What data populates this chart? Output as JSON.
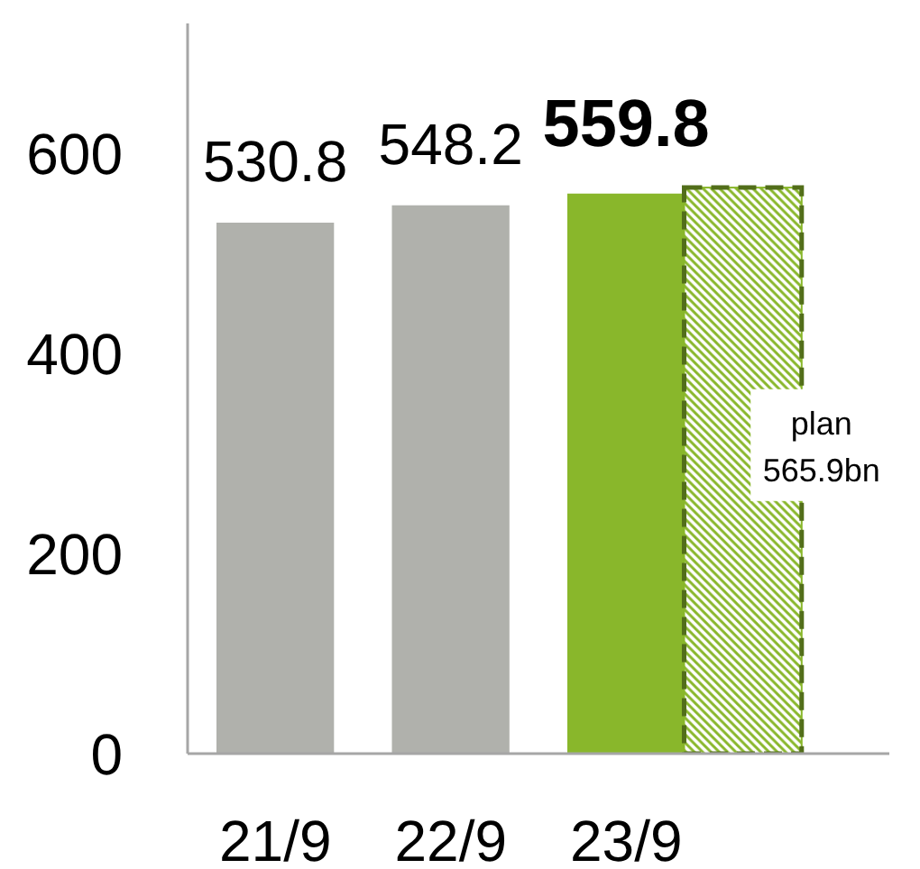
{
  "chart_data": {
    "type": "bar",
    "categories": [
      "21/9",
      "22/9",
      "23/9",
      null
    ],
    "series": [
      {
        "colors": [
          "#b0b1ac",
          "#b0b1ac",
          "#89b72b",
          null
        ],
        "values": [
          530.8,
          548.2,
          559.8,
          null
        ],
        "value_labels": [
          "530.8",
          "548.2",
          "559.8",
          null
        ]
      },
      {
        "name": "plan",
        "color": "#89b72b",
        "line_style": "dashed",
        "values": [
          null,
          null,
          null,
          565.9
        ],
        "value_labels": [
          null,
          null,
          null,
          "565.9bn"
        ]
      }
    ],
    "ylim": [
      0,
      730
    ],
    "yticks": [
      0,
      200,
      400,
      600
    ]
  }
}
